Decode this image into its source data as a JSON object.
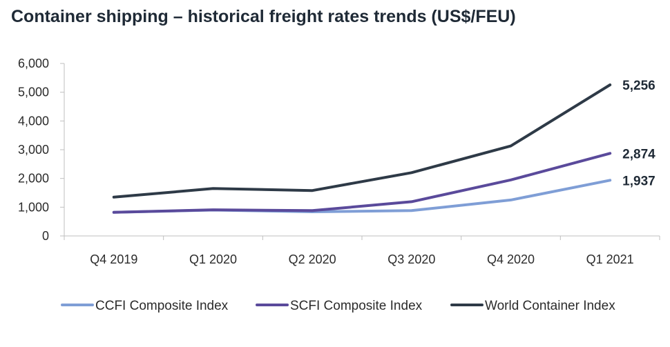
{
  "chart_data": {
    "type": "line",
    "title": "Container shipping – historical freight rates trends (US$/FEU)",
    "xlabel": "",
    "ylabel": "",
    "categories": [
      "Q4 2019",
      "Q1 2020",
      "Q2 2020",
      "Q3 2020",
      "Q4 2020",
      "Q1 2021"
    ],
    "ylim": [
      0,
      6000
    ],
    "yticks": [
      0,
      1000,
      2000,
      3000,
      4000,
      5000,
      6000
    ],
    "ytick_labels": [
      "0",
      "1,000",
      "2,000",
      "3,000",
      "4,000",
      "5,000",
      "6,000"
    ],
    "grid": false,
    "legend_position": "bottom",
    "series": [
      {
        "name": "CCFI Composite Index",
        "color": "#7f9ed6",
        "values": [
          820,
          900,
          840,
          880,
          1250,
          1937
        ],
        "end_label": "1,937"
      },
      {
        "name": "SCFI Composite Index",
        "color": "#5a4a9b",
        "values": [
          820,
          910,
          880,
          1190,
          1950,
          2874
        ],
        "end_label": "2,874"
      },
      {
        "name": "World Container Index",
        "color": "#2e3a47",
        "values": [
          1350,
          1650,
          1580,
          2200,
          3130,
          5256
        ],
        "end_label": "5,256"
      }
    ]
  }
}
